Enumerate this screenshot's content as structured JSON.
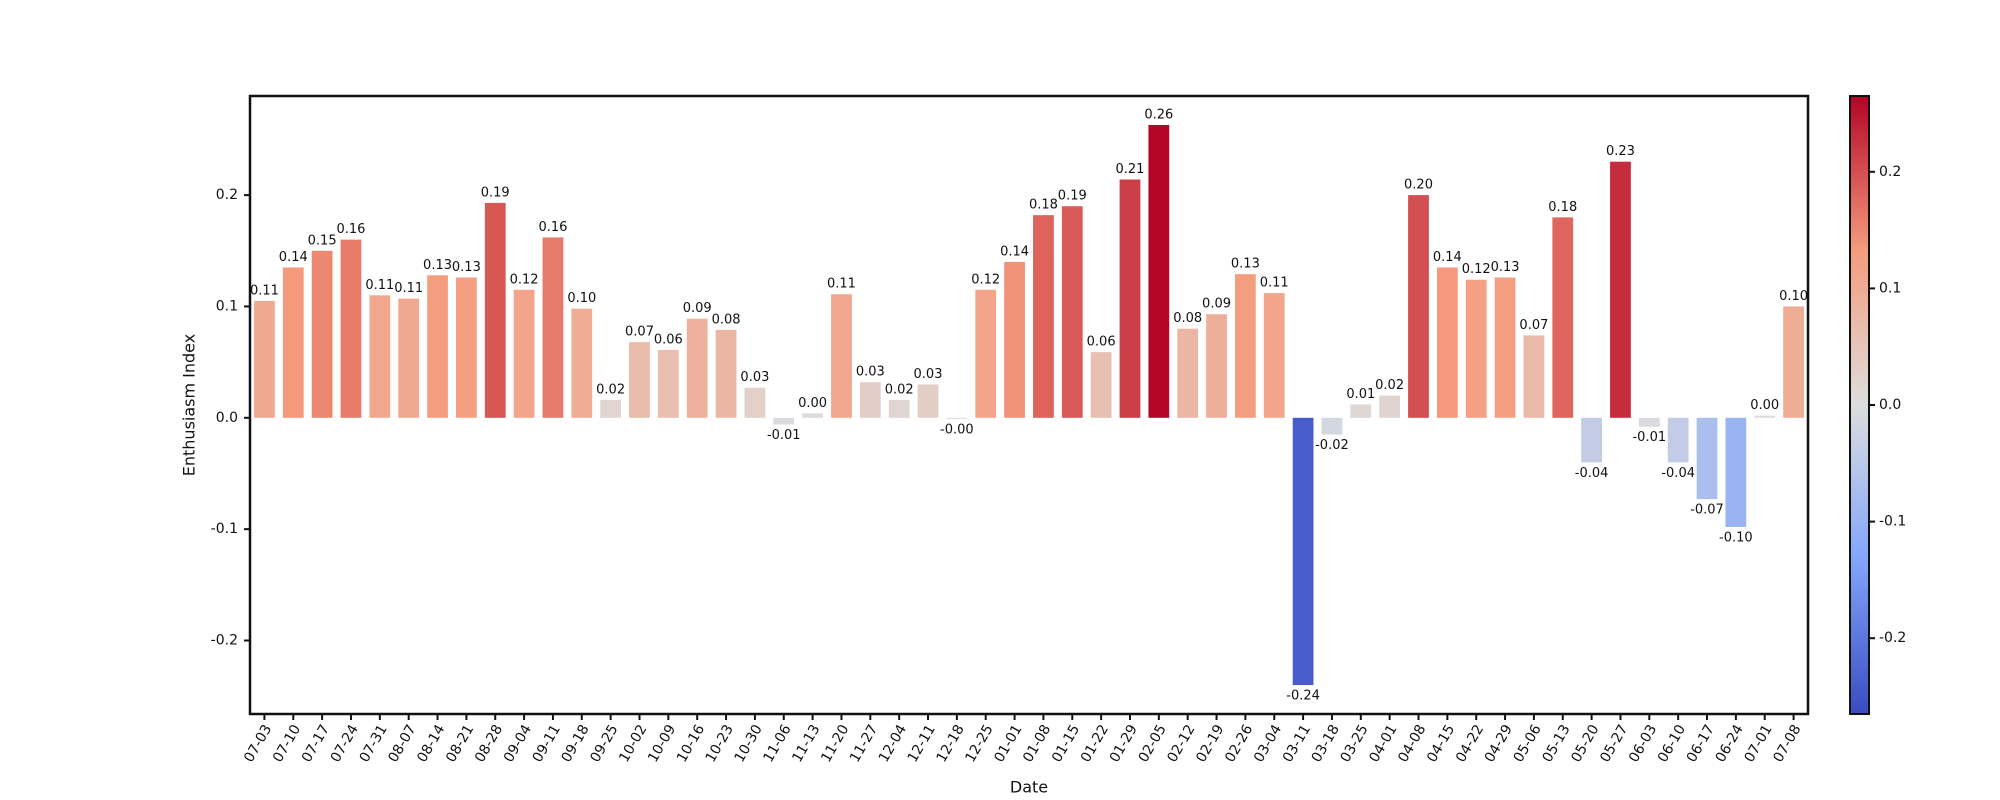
{
  "chart_data": {
    "type": "bar",
    "x_label": "Date",
    "y_label": "Enthusiasm Index",
    "categories": [
      "07-03",
      "07-10",
      "07-17",
      "07-24",
      "07-31",
      "08-07",
      "08-14",
      "08-21",
      "08-28",
      "09-04",
      "09-11",
      "09-18",
      "09-25",
      "10-02",
      "10-09",
      "10-16",
      "10-23",
      "10-30",
      "11-06",
      "11-13",
      "11-20",
      "11-27",
      "12-04",
      "12-11",
      "12-18",
      "12-25",
      "01-01",
      "01-08",
      "01-15",
      "01-22",
      "01-29",
      "02-05",
      "02-12",
      "02-19",
      "02-26",
      "03-04",
      "03-11",
      "03-18",
      "03-25",
      "04-01",
      "04-08",
      "04-15",
      "04-22",
      "04-29",
      "05-06",
      "05-13",
      "05-20",
      "05-27",
      "06-03",
      "06-10",
      "06-17",
      "06-24",
      "07-01",
      "07-08"
    ],
    "values": [
      0.105,
      0.135,
      0.15,
      0.16,
      0.11,
      0.107,
      0.128,
      0.126,
      0.193,
      0.115,
      0.162,
      0.098,
      0.016,
      0.068,
      0.061,
      0.089,
      0.079,
      0.027,
      -0.006,
      0.004,
      0.111,
      0.032,
      0.016,
      0.03,
      -0.001,
      0.115,
      0.14,
      0.182,
      0.19,
      0.059,
      0.214,
      0.263,
      0.08,
      0.093,
      0.129,
      0.112,
      -0.24,
      -0.015,
      0.012,
      0.02,
      0.2,
      0.135,
      0.124,
      0.126,
      0.074,
      0.18,
      -0.04,
      0.23,
      -0.008,
      -0.04,
      -0.073,
      -0.098,
      0.002,
      0.1
    ],
    "value_labels": [
      "0.11",
      "0.14",
      "0.15",
      "0.16",
      "0.11",
      "0.11",
      "0.13",
      "0.13",
      "0.19",
      "0.12",
      "0.16",
      "0.10",
      "0.02",
      "0.07",
      "0.06",
      "0.09",
      "0.08",
      "0.03",
      "-0.01",
      "0.00",
      "0.11",
      "0.03",
      "0.02",
      "0.03",
      "-0.00",
      "0.12",
      "0.14",
      "0.18",
      "0.19",
      "0.06",
      "0.21",
      "0.26",
      "0.08",
      "0.09",
      "0.13",
      "0.11",
      "-0.24",
      "-0.02",
      "0.01",
      "0.02",
      "0.20",
      "0.14",
      "0.12",
      "0.13",
      "0.07",
      "0.18",
      "-0.04",
      "0.23",
      "-0.01",
      "-0.04",
      "-0.07",
      "-0.10",
      "0.00",
      "0.10"
    ],
    "ylim": [
      -0.266,
      0.289
    ],
    "yticks": [
      -0.2,
      -0.1,
      {
        "value": 0,
        "label": "0.0"
      },
      0.1,
      0.2
    ],
    "colormap": "coolwarm",
    "colorbar": {
      "lim": [
        -0.265,
        0.265
      ],
      "ticks": [
        -0.2,
        -0.1,
        {
          "value": 0,
          "label": "0.0"
        },
        0.1,
        0.2
      ]
    }
  }
}
